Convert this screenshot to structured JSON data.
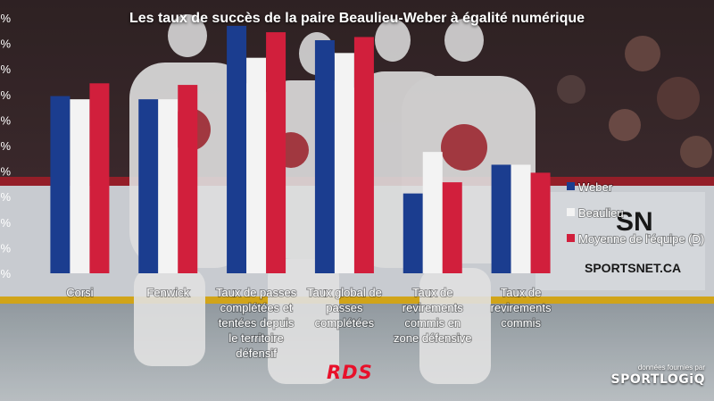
{
  "chart_data": {
    "type": "bar",
    "title": "Les taux de succès de la paire Beaulieu-Weber à égalité numérique",
    "categories": [
      [
        "Corsi"
      ],
      [
        "Fenwick"
      ],
      [
        "Taux de passes",
        "complétées et",
        "tentées depuis",
        "le territoire",
        "défensif"
      ],
      [
        "Taux global de",
        "passes",
        "complétées"
      ],
      [
        "Taux de",
        "revirements",
        "commis en",
        "zone défensive"
      ],
      [
        "Taux de",
        "revirements",
        "commis"
      ]
    ],
    "series": [
      {
        "name": "Weber",
        "color": "#1b3d8f",
        "values": [
          0.555,
          0.545,
          0.775,
          0.73,
          0.25,
          0.34
        ]
      },
      {
        "name": "Beaulieu",
        "color": "#f3f3f3",
        "values": [
          0.545,
          0.545,
          0.675,
          0.69,
          0.38,
          0.34
        ]
      },
      {
        "name": "Moyenne de l'équipe (D)",
        "color": "#d11f3c",
        "values": [
          0.595,
          0.59,
          0.755,
          0.74,
          0.285,
          0.315
        ]
      }
    ],
    "ylim": [
      0,
      0.8
    ],
    "ytick_labels": [
      "%",
      "%",
      "%",
      "%",
      "%",
      "%",
      "%",
      "%",
      "%",
      "%",
      "%"
    ],
    "legend_position": "right",
    "grid": false
  },
  "source": {
    "prefix": "données fournies par",
    "brand": "SPORTLOGiQ"
  },
  "logo_text": "RDS"
}
